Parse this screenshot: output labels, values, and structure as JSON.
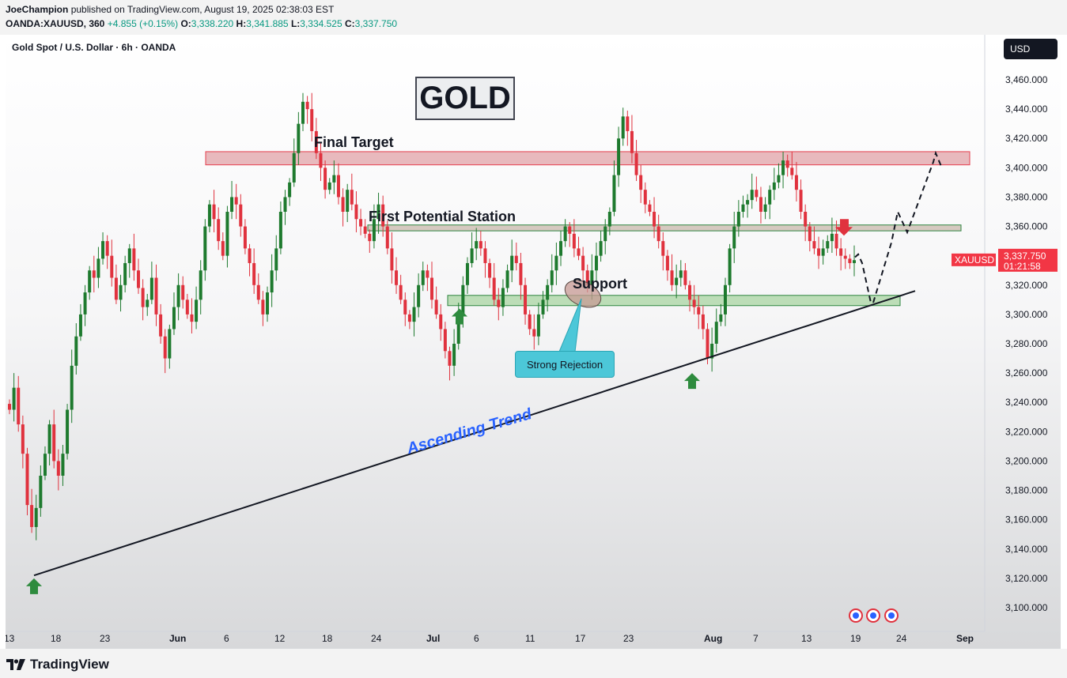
{
  "header": {
    "author": "JoeChampion",
    "published": "published on TradingView.com, August 19, 2025 02:38:03 EST",
    "symbol_line": "OANDA:XAUUSD, 360",
    "change": "+4.855 (+0.15%)",
    "open_label": "O:",
    "open": "3,338.220",
    "high_label": "H:",
    "high": "3,341.885",
    "low_label": "L:",
    "low": "3,334.525",
    "close_label": "C:",
    "close": "3,337.750"
  },
  "chart_title": "Gold Spot / U.S. Dollar · 6h · OANDA",
  "currency_button": "USD",
  "logo_text": "GOLD",
  "annotations": {
    "final_target": "Final Target",
    "first_station": "First Potential Station",
    "support": "Support",
    "ascending_trend": "Ascending Trend",
    "strong_rejection": "Strong Rejection"
  },
  "price_tag": {
    "symbol": "XAUUSD",
    "price": "3,337.750",
    "countdown": "01:21:58"
  },
  "footer": {
    "brand": "TradingView"
  },
  "colors": {
    "up": "#089981",
    "down": "#f23645",
    "candle_up": "#1e7a2e",
    "candle_down": "#e0323e",
    "target_zone": "#e2a3a8",
    "target_border": "#e5404f",
    "station_zone": "#c9b8ac",
    "station_border": "#2e8540",
    "support_zone": "#a8d4a2",
    "support_border": "#2e8540",
    "trend_label": "#2962ff",
    "callout": "#4cc7d8"
  },
  "chart_data": {
    "type": "candlestick",
    "title": "Gold Spot / U.S. Dollar · 6h · OANDA",
    "xlabel": "",
    "ylabel": "",
    "ylim": [
      3090,
      3470
    ],
    "y_ticks": [
      "3,460.000",
      "3,440.000",
      "3,420.000",
      "3,400.000",
      "3,380.000",
      "3,360.000",
      "3,340.000",
      "3,320.000",
      "3,300.000",
      "3,280.000",
      "3,260.000",
      "3,240.000",
      "3,220.000",
      "3,200.000",
      "3,180.000",
      "3,160.000",
      "3,140.000",
      "3,120.000",
      "3,100.000"
    ],
    "x_ticks": [
      "13",
      "18",
      "23",
      "Jun",
      "6",
      "12",
      "18",
      "24",
      "Jul",
      "6",
      "11",
      "17",
      "23",
      "Aug",
      "7",
      "13",
      "19",
      "24",
      "Sep"
    ],
    "grid": false,
    "zones": [
      {
        "name": "Final Target",
        "from": 3402,
        "to": 3411
      },
      {
        "name": "First Potential Station",
        "from": 3357,
        "to": 3361
      },
      {
        "name": "Support",
        "from": 3306,
        "to": 3313
      }
    ],
    "trendline": {
      "from": 3122,
      "to": 3316
    },
    "projection": [
      3339,
      3341,
      3335,
      3308,
      3308,
      3349,
      3370,
      3356,
      3404,
      3410,
      3401
    ],
    "series": [
      {
        "values": [
          3235,
          3250,
          3225,
          3205,
          3170,
          3155,
          3168,
          3190,
          3205,
          3225,
          3200,
          3190,
          3205,
          3235,
          3265,
          3285,
          3300,
          3315,
          3330,
          3325,
          3338,
          3350,
          3340,
          3325,
          3310,
          3320,
          3335,
          3345,
          3330,
          3318,
          3305,
          3310,
          3325,
          3300,
          3285,
          3270,
          3290,
          3305,
          3320,
          3310,
          3300,
          3295,
          3310,
          3330,
          3360,
          3375,
          3365,
          3350,
          3340,
          3370,
          3380,
          3375,
          3360,
          3345,
          3335,
          3320,
          3310,
          3300,
          3315,
          3330,
          3345,
          3370,
          3380,
          3390,
          3410,
          3430,
          3445,
          3440,
          3425,
          3410,
          3400,
          3385,
          3390,
          3395,
          3380,
          3370,
          3385,
          3375,
          3365,
          3360,
          3355,
          3350,
          3365,
          3375,
          3360,
          3345,
          3330,
          3320,
          3310,
          3300,
          3295,
          3305,
          3320,
          3330,
          3325,
          3310,
          3300,
          3290,
          3275,
          3265,
          3280,
          3300,
          3320,
          3335,
          3345,
          3350,
          3345,
          3335,
          3325,
          3310,
          3305,
          3318,
          3330,
          3340,
          3335,
          3320,
          3300,
          3290,
          3285,
          3300,
          3310,
          3320,
          3330,
          3340,
          3350,
          3360,
          3355,
          3345,
          3340,
          3330,
          3320,
          3330,
          3340,
          3350,
          3360,
          3370,
          3395,
          3420,
          3435,
          3425,
          3410,
          3395,
          3385,
          3375,
          3370,
          3360,
          3350,
          3340,
          3330,
          3320,
          3325,
          3330,
          3320,
          3310,
          3305,
          3300,
          3290,
          3270,
          3280,
          3295,
          3300,
          3320,
          3345,
          3360,
          3370,
          3375,
          3378,
          3385,
          3380,
          3370,
          3375,
          3385,
          3390,
          3395,
          3405,
          3400,
          3395,
          3385,
          3370,
          3360,
          3350,
          3345,
          3340,
          3345,
          3350,
          3355,
          3345,
          3340,
          3338,
          3335,
          3337
        ]
      }
    ]
  }
}
